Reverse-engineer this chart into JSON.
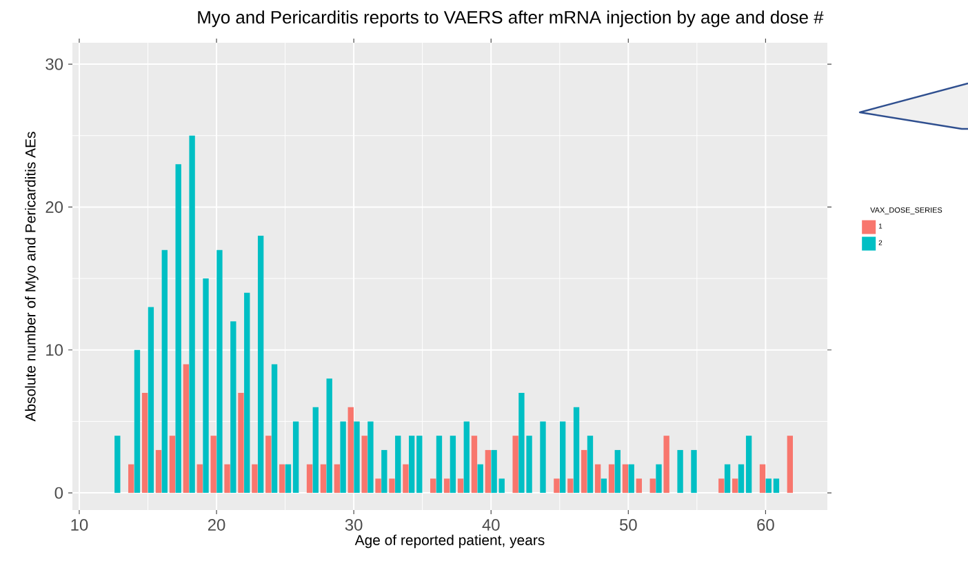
{
  "chart_data": {
    "type": "bar",
    "title": "Myo and Pericarditis reports to VAERS after mRNA injection by age and dose #",
    "xlabel": "Age of reported patient, years",
    "ylabel": "Absolute number of Myo and Pericarditis AEs",
    "legend_title": "VAX_DOSE_SERIES",
    "x": [
      13,
      14,
      15,
      16,
      17,
      18,
      19,
      20,
      21,
      22,
      23,
      24,
      25,
      26,
      27,
      28,
      29,
      30,
      31,
      32,
      33,
      34,
      35,
      36,
      37,
      38,
      39,
      40,
      41,
      42,
      43,
      44,
      45,
      46,
      47,
      48,
      49,
      50,
      51,
      52,
      53,
      54,
      55,
      57,
      58,
      59,
      60,
      61,
      62
    ],
    "series": [
      {
        "name": "1",
        "color": "#f8766d",
        "values": [
          null,
          2,
          7,
          3,
          4,
          9,
          2,
          4,
          2,
          7,
          2,
          4,
          2,
          null,
          2,
          2,
          2,
          6,
          4,
          1,
          1,
          2,
          null,
          1,
          1,
          1,
          4,
          3,
          null,
          4,
          null,
          null,
          1,
          1,
          3,
          2,
          2,
          2,
          1,
          1,
          4,
          null,
          null,
          1,
          1,
          null,
          2,
          null,
          4
        ]
      },
      {
        "name": "2",
        "color": "#00bfc4",
        "values": [
          4,
          10,
          13,
          17,
          23,
          25,
          15,
          17,
          12,
          14,
          18,
          9,
          2,
          5,
          6,
          8,
          5,
          5,
          5,
          3,
          4,
          4,
          4,
          4,
          4,
          5,
          2,
          3,
          1,
          7,
          4,
          5,
          5,
          6,
          4,
          1,
          3,
          2,
          null,
          2,
          null,
          3,
          3,
          2,
          2,
          4,
          1,
          1,
          null
        ]
      }
    ],
    "xlim": [
      9.5,
      64.5
    ],
    "ylim": [
      -1.2,
      31.5
    ],
    "xticks": [
      10,
      20,
      30,
      40,
      50,
      60
    ],
    "yticks": [
      0,
      10,
      20,
      30
    ],
    "grid": true,
    "legend": "right"
  }
}
